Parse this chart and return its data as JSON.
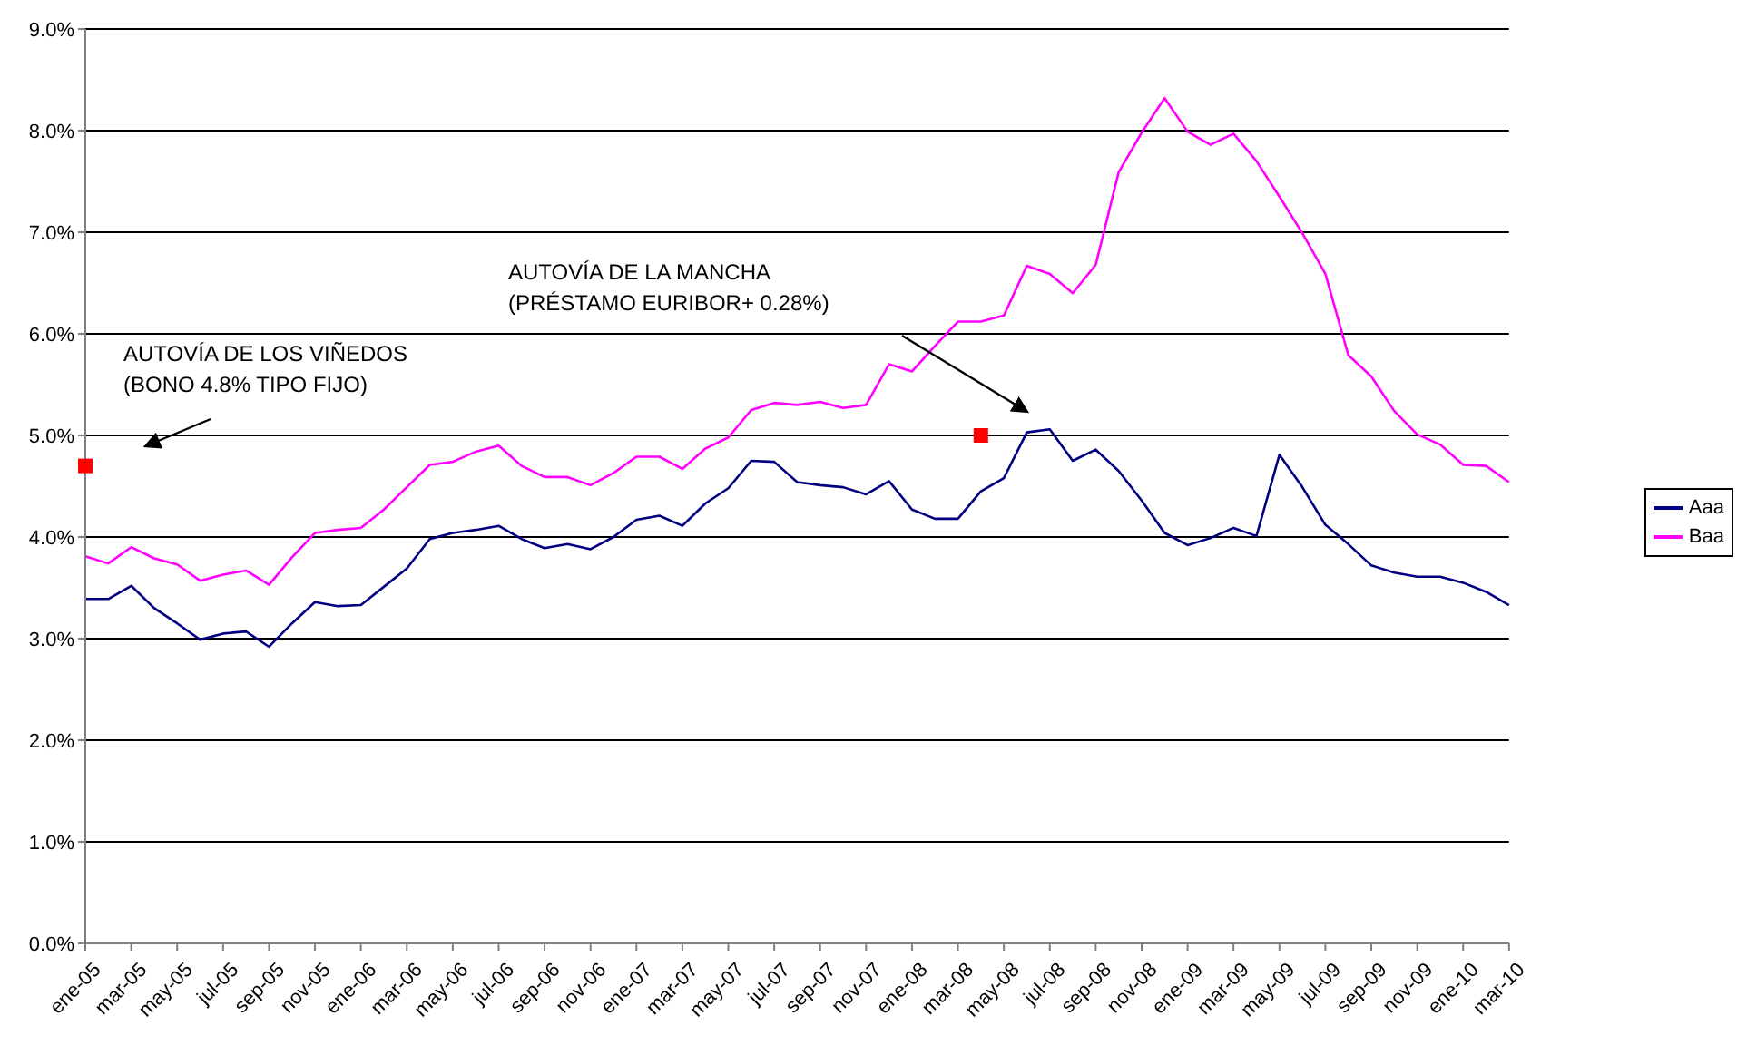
{
  "chart_data": {
    "type": "line",
    "categories": [
      "ene-05",
      null,
      "mar-05",
      null,
      "may-05",
      null,
      "jul-05",
      null,
      "sep-05",
      null,
      "nov-05",
      null,
      "ene-06",
      null,
      "mar-06",
      null,
      "may-06",
      null,
      "jul-06",
      null,
      "sep-06",
      null,
      "nov-06",
      null,
      "ene-07",
      null,
      "mar-07",
      null,
      "may-07",
      null,
      "jul-07",
      null,
      "sep-07",
      null,
      "nov-07",
      null,
      "ene-08",
      null,
      "mar-08",
      null,
      "may-08",
      null,
      "jul-08",
      null,
      "sep-08",
      null,
      "nov-08",
      null,
      "ene-09",
      null,
      "mar-09",
      null,
      "may-09",
      null,
      "jul-09",
      null,
      "sep-09",
      null,
      "nov-09",
      null,
      "ene-10",
      null,
      "mar-10"
    ],
    "series": [
      {
        "name": "Aaa",
        "color": "#000080",
        "values": [
          3.39,
          3.39,
          3.52,
          3.3,
          3.15,
          2.99,
          3.05,
          3.07,
          2.92,
          3.15,
          3.36,
          3.32,
          3.33,
          3.51,
          3.69,
          3.98,
          4.04,
          4.07,
          4.11,
          3.98,
          3.89,
          3.93,
          3.88,
          4.0,
          4.17,
          4.21,
          4.11,
          4.33,
          4.48,
          4.75,
          4.74,
          4.54,
          4.51,
          4.49,
          4.42,
          4.55,
          4.27,
          4.18,
          4.18,
          4.45,
          4.58,
          5.03,
          5.06,
          4.75,
          4.86,
          4.65,
          4.36,
          4.04,
          3.92,
          3.99,
          4.09,
          4.01,
          4.81,
          4.49,
          4.12,
          3.93,
          3.72,
          3.65,
          3.61,
          3.61,
          3.55,
          3.46,
          3.33
        ]
      },
      {
        "name": "Baa",
        "color": "#ff00ff",
        "values": [
          3.81,
          3.74,
          3.9,
          3.79,
          3.73,
          3.57,
          3.63,
          3.67,
          3.53,
          3.8,
          4.04,
          4.07,
          4.09,
          4.27,
          4.49,
          4.71,
          4.74,
          4.84,
          4.9,
          4.7,
          4.59,
          4.59,
          4.51,
          4.63,
          4.79,
          4.79,
          4.67,
          4.87,
          4.98,
          5.25,
          5.32,
          5.3,
          5.33,
          5.27,
          5.3,
          5.7,
          5.63,
          5.88,
          6.12,
          6.12,
          6.18,
          6.67,
          6.59,
          6.4,
          6.68,
          7.59,
          7.98,
          8.32,
          7.99,
          7.86,
          7.97,
          7.7,
          7.35,
          6.99,
          6.59,
          5.79,
          5.58,
          5.24,
          5.01,
          4.91,
          4.71,
          4.7,
          4.54
        ]
      },
      {
        "type": "scatter",
        "marker": "square",
        "color": "#ff0000",
        "values": [
          4.7,
          null,
          null,
          null,
          null,
          null,
          null,
          null,
          null,
          null,
          null,
          null,
          null,
          null,
          null,
          null,
          null,
          null,
          null,
          null,
          null,
          null,
          null,
          null,
          null,
          null,
          null,
          null,
          null,
          null,
          null,
          null,
          null,
          null,
          null,
          null,
          null,
          null,
          null,
          5.0,
          null,
          null,
          null,
          null,
          null,
          null,
          null,
          null,
          null,
          null,
          null,
          null,
          null,
          null,
          null,
          null,
          null,
          null,
          null,
          null,
          null,
          null,
          null
        ]
      }
    ],
    "ylim": [
      0,
      9
    ],
    "yticks": [
      {
        "value": 0,
        "label": "0.0%"
      },
      {
        "value": 1,
        "label": "1.0%"
      },
      {
        "value": 2,
        "label": "2.0%"
      },
      {
        "value": 3,
        "label": "3.0%"
      },
      {
        "value": 4,
        "label": "4.0%"
      },
      {
        "value": 5,
        "label": "5.0%"
      },
      {
        "value": 6,
        "label": "6.0%"
      },
      {
        "value": 7,
        "label": "7.0%"
      },
      {
        "value": 8,
        "label": "8.0%"
      },
      {
        "value": 9,
        "label": "9.0%"
      }
    ],
    "grid": "y",
    "legend": "right",
    "marker": "none",
    "annotations": [
      "AUTOVÍA DE LOS VIÑEDOS\n(BONO 4.8% TIPO FIJO)",
      "AUTOVÍA DE LA MANCHA\n(PRÉSTAMO EURIBOR+ 0.28%)"
    ]
  }
}
